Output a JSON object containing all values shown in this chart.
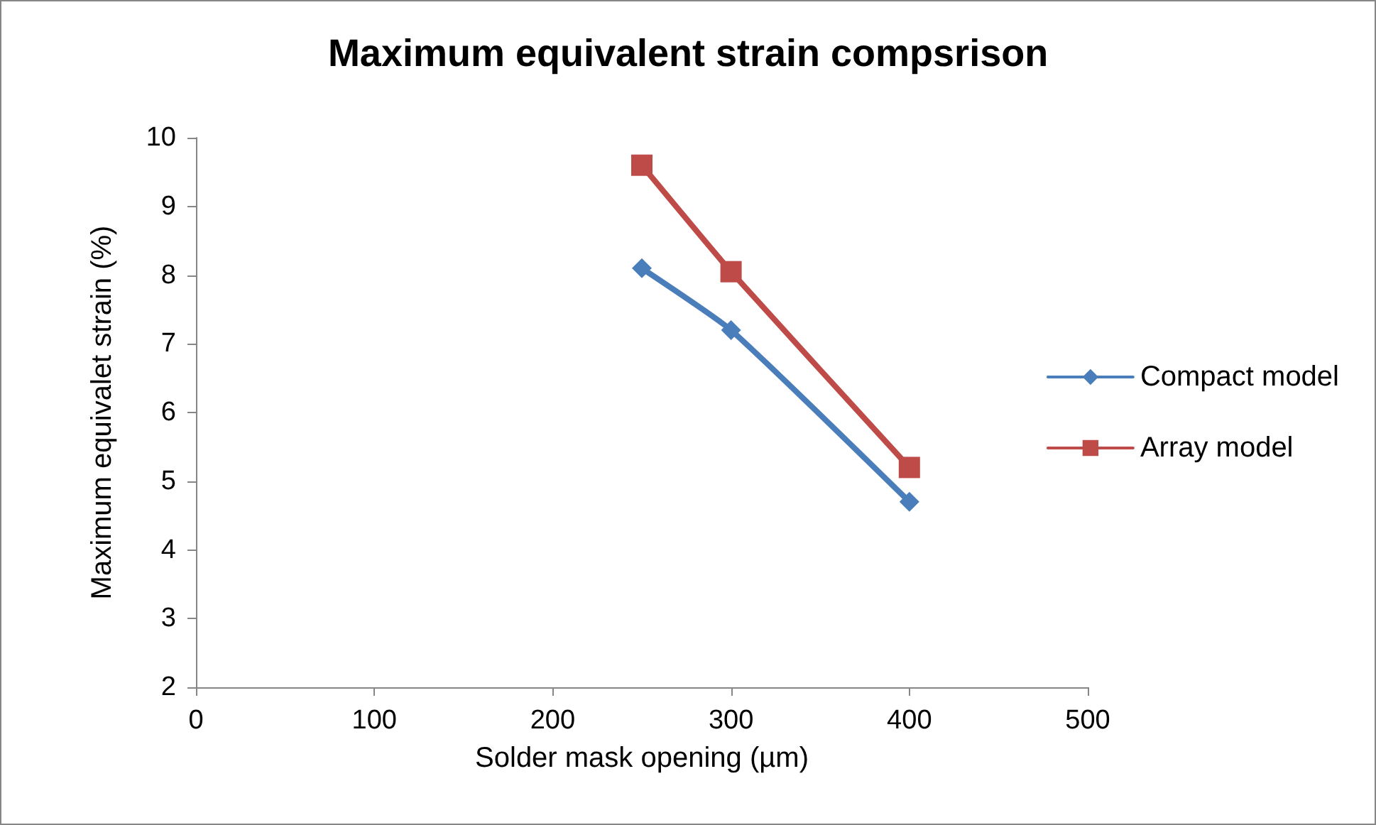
{
  "chart_data": {
    "type": "line",
    "title": "Maximum equivalent strain compsrison",
    "xlabel": "Solder mask opening (µm)",
    "ylabel": "Maximum equivalet strain (%)",
    "x": [
      250,
      300,
      400
    ],
    "series": [
      {
        "name": "Compact model",
        "color": "#4a7ebb",
        "values": [
          8.1,
          7.2,
          4.7
        ],
        "marker": "diamond"
      },
      {
        "name": "Array model",
        "color": "#be4b48",
        "values": [
          9.6,
          8.05,
          5.2
        ],
        "marker": "square"
      }
    ],
    "xlim": [
      0,
      500
    ],
    "xticks": [
      0,
      100,
      200,
      300,
      400,
      500
    ],
    "ylim": [
      2,
      10
    ],
    "yticks": [
      2,
      3,
      4,
      5,
      6,
      7,
      8,
      9,
      10
    ],
    "grid": false,
    "legend": "right",
    "line_style": "solid"
  }
}
